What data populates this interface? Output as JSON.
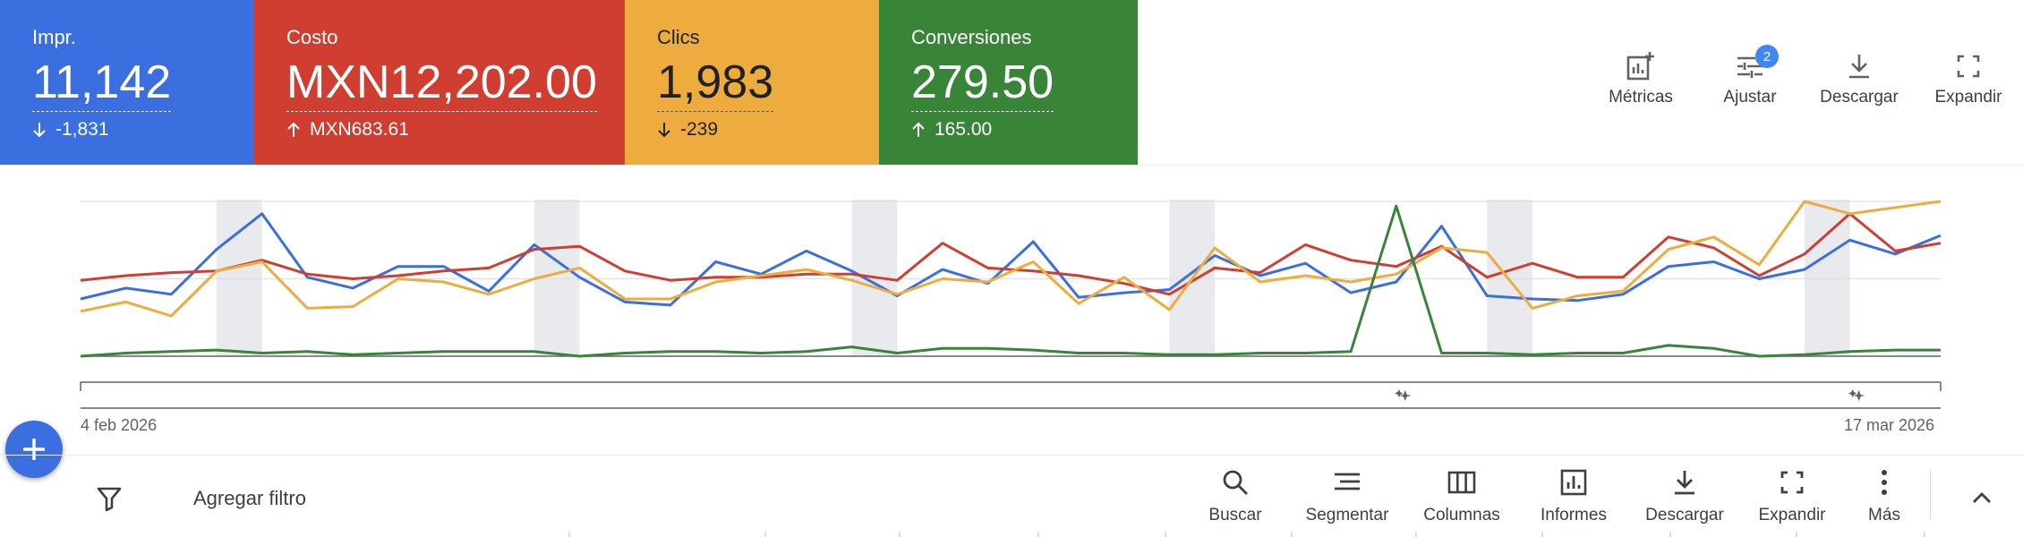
{
  "scorecards": [
    {
      "label": "Impr.",
      "value": "11,142",
      "delta": "-1,831",
      "direction": "down",
      "color": "#3b6fe0"
    },
    {
      "label": "Costo",
      "value": "MXN12,202.00",
      "delta": "MXN683.61",
      "direction": "up",
      "color": "#cf3e31"
    },
    {
      "label": "Clics",
      "value": "1,983",
      "delta": "-239",
      "direction": "down",
      "color": "#edac3d"
    },
    {
      "label": "Conversiones",
      "value": "279.50",
      "delta": "165.00",
      "direction": "up",
      "color": "#388538"
    }
  ],
  "top_actions": {
    "metrics": "Métricas",
    "adjust": "Ajustar",
    "adjust_badge": "2",
    "download": "Descargar",
    "expand": "Expandir"
  },
  "chart_data": {
    "type": "line",
    "x_start_label": "4 feb 2026",
    "x_end_label": "17 mar 2026",
    "normalized_scale": true,
    "y_range": [
      0,
      1
    ],
    "weekend_bands": [
      [
        3,
        4
      ],
      [
        10,
        11
      ],
      [
        17,
        18
      ],
      [
        24,
        25
      ],
      [
        31,
        32
      ],
      [
        38,
        39
      ]
    ],
    "annotation_markers": [
      29,
      39
    ],
    "series": [
      {
        "name": "Impr.",
        "color": "#3b6fe0",
        "values": [
          0.37,
          0.44,
          0.4,
          0.69,
          0.92,
          0.51,
          0.44,
          0.58,
          0.58,
          0.42,
          0.72,
          0.51,
          0.35,
          0.33,
          0.61,
          0.53,
          0.68,
          0.55,
          0.39,
          0.56,
          0.47,
          0.74,
          0.38,
          0.41,
          0.43,
          0.65,
          0.52,
          0.6,
          0.41,
          0.48,
          0.84,
          0.39,
          0.37,
          0.36,
          0.4,
          0.58,
          0.61,
          0.5,
          0.56,
          0.75,
          0.66,
          0.78
        ]
      },
      {
        "name": "Costo",
        "color": "#cf3e31",
        "values": [
          0.49,
          0.52,
          0.54,
          0.55,
          0.62,
          0.53,
          0.5,
          0.52,
          0.55,
          0.57,
          0.69,
          0.71,
          0.55,
          0.49,
          0.51,
          0.51,
          0.53,
          0.53,
          0.49,
          0.73,
          0.57,
          0.55,
          0.52,
          0.47,
          0.4,
          0.57,
          0.54,
          0.72,
          0.62,
          0.58,
          0.71,
          0.51,
          0.6,
          0.51,
          0.51,
          0.77,
          0.7,
          0.52,
          0.66,
          0.92,
          0.68,
          0.73
        ]
      },
      {
        "name": "Clics",
        "color": "#edac3d",
        "values": [
          0.29,
          0.35,
          0.26,
          0.55,
          0.61,
          0.31,
          0.32,
          0.5,
          0.48,
          0.4,
          0.5,
          0.57,
          0.37,
          0.37,
          0.48,
          0.52,
          0.56,
          0.49,
          0.4,
          0.5,
          0.48,
          0.61,
          0.34,
          0.51,
          0.3,
          0.7,
          0.48,
          0.52,
          0.48,
          0.53,
          0.7,
          0.67,
          0.31,
          0.39,
          0.42,
          0.69,
          0.77,
          0.59,
          1.0,
          0.92,
          0.96,
          1.0
        ]
      },
      {
        "name": "Conversiones",
        "color": "#388538",
        "values": [
          0.0,
          0.02,
          0.03,
          0.04,
          0.02,
          0.03,
          0.01,
          0.02,
          0.03,
          0.03,
          0.03,
          0.0,
          0.02,
          0.03,
          0.03,
          0.02,
          0.03,
          0.06,
          0.02,
          0.05,
          0.05,
          0.04,
          0.02,
          0.02,
          0.01,
          0.01,
          0.02,
          0.02,
          0.03,
          0.97,
          0.02,
          0.02,
          0.01,
          0.02,
          0.02,
          0.07,
          0.05,
          0.0,
          0.01,
          0.03,
          0.04,
          0.04
        ]
      }
    ]
  },
  "toolbar": {
    "filter_placeholder": "Agregar filtro",
    "search": "Buscar",
    "segment": "Segmentar",
    "columns": "Columnas",
    "reports": "Informes",
    "download": "Descargar",
    "expand": "Expandir",
    "more": "Más"
  }
}
